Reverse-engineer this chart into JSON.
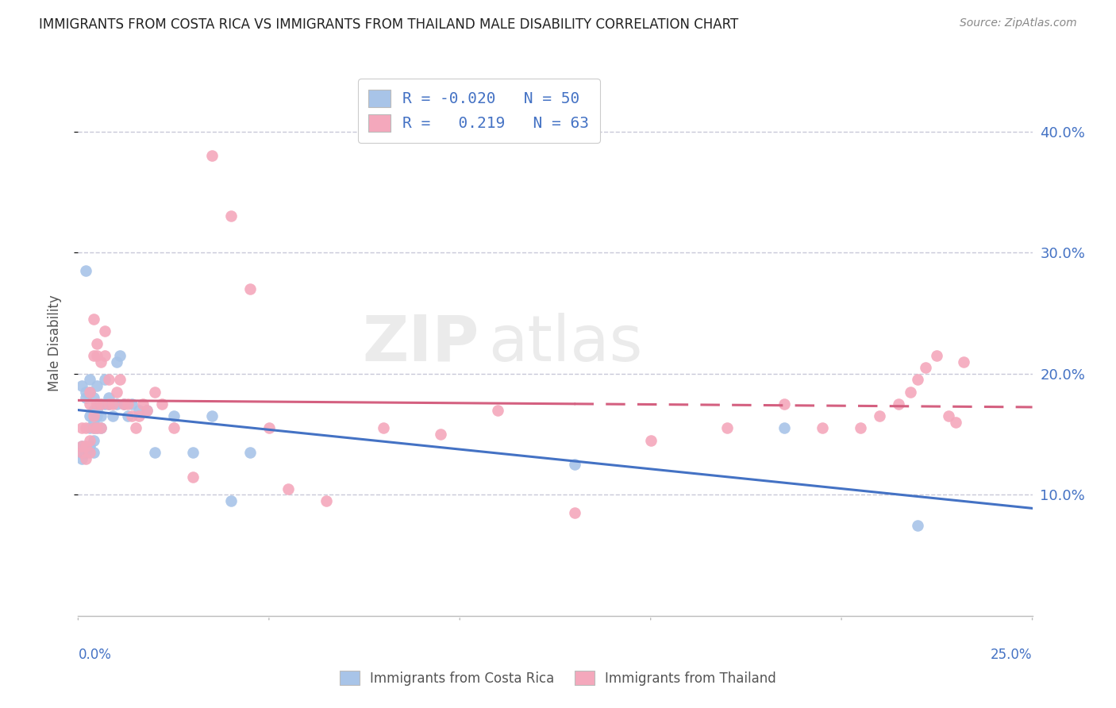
{
  "title": "IMMIGRANTS FROM COSTA RICA VS IMMIGRANTS FROM THAILAND MALE DISABILITY CORRELATION CHART",
  "source": "Source: ZipAtlas.com",
  "ylabel": "Male Disability",
  "right_ytick_vals": [
    0.1,
    0.2,
    0.3,
    0.4
  ],
  "legend_blue_r": "-0.020",
  "legend_blue_n": "50",
  "legend_pink_r": "0.219",
  "legend_pink_n": "63",
  "blue_color": "#a8c4e8",
  "pink_color": "#f4a8bc",
  "blue_line_color": "#4472c4",
  "pink_line_color": "#d46080",
  "background_color": "#ffffff",
  "grid_color": "#c8c8d8",
  "blue_scatter_x": [
    0.001,
    0.001,
    0.001,
    0.001,
    0.002,
    0.002,
    0.002,
    0.002,
    0.002,
    0.003,
    0.003,
    0.003,
    0.003,
    0.003,
    0.004,
    0.004,
    0.004,
    0.004,
    0.004,
    0.004,
    0.005,
    0.005,
    0.005,
    0.005,
    0.005,
    0.006,
    0.006,
    0.006,
    0.007,
    0.007,
    0.008,
    0.008,
    0.009,
    0.01,
    0.01,
    0.011,
    0.012,
    0.013,
    0.014,
    0.016,
    0.018,
    0.02,
    0.025,
    0.03,
    0.035,
    0.04,
    0.045,
    0.13,
    0.185,
    0.22
  ],
  "blue_scatter_y": [
    0.13,
    0.135,
    0.14,
    0.19,
    0.135,
    0.14,
    0.18,
    0.185,
    0.285,
    0.14,
    0.155,
    0.165,
    0.185,
    0.195,
    0.135,
    0.145,
    0.155,
    0.16,
    0.17,
    0.18,
    0.155,
    0.165,
    0.17,
    0.175,
    0.19,
    0.155,
    0.165,
    0.175,
    0.175,
    0.195,
    0.175,
    0.18,
    0.165,
    0.175,
    0.21,
    0.215,
    0.175,
    0.165,
    0.175,
    0.17,
    0.17,
    0.135,
    0.165,
    0.135,
    0.165,
    0.095,
    0.135,
    0.125,
    0.155,
    0.075
  ],
  "pink_scatter_x": [
    0.001,
    0.001,
    0.001,
    0.002,
    0.002,
    0.002,
    0.003,
    0.003,
    0.003,
    0.003,
    0.004,
    0.004,
    0.004,
    0.004,
    0.005,
    0.005,
    0.005,
    0.005,
    0.006,
    0.006,
    0.006,
    0.007,
    0.007,
    0.008,
    0.008,
    0.009,
    0.01,
    0.011,
    0.012,
    0.013,
    0.014,
    0.015,
    0.016,
    0.017,
    0.018,
    0.02,
    0.022,
    0.025,
    0.03,
    0.035,
    0.04,
    0.045,
    0.05,
    0.055,
    0.065,
    0.08,
    0.095,
    0.11,
    0.13,
    0.15,
    0.17,
    0.185,
    0.195,
    0.205,
    0.21,
    0.215,
    0.218,
    0.22,
    0.222,
    0.225,
    0.228,
    0.23,
    0.232
  ],
  "pink_scatter_y": [
    0.135,
    0.14,
    0.155,
    0.13,
    0.14,
    0.155,
    0.135,
    0.145,
    0.175,
    0.185,
    0.155,
    0.165,
    0.215,
    0.245,
    0.155,
    0.175,
    0.215,
    0.225,
    0.155,
    0.175,
    0.21,
    0.215,
    0.235,
    0.175,
    0.195,
    0.175,
    0.185,
    0.195,
    0.175,
    0.175,
    0.165,
    0.155,
    0.165,
    0.175,
    0.17,
    0.185,
    0.175,
    0.155,
    0.115,
    0.38,
    0.33,
    0.27,
    0.155,
    0.105,
    0.095,
    0.155,
    0.15,
    0.17,
    0.085,
    0.145,
    0.155,
    0.175,
    0.155,
    0.155,
    0.165,
    0.175,
    0.185,
    0.195,
    0.205,
    0.215,
    0.165,
    0.16,
    0.21
  ],
  "xlim": [
    0.0,
    0.25
  ],
  "ylim": [
    0.0,
    0.45
  ],
  "R_blue": -0.02,
  "R_pink": 0.219
}
